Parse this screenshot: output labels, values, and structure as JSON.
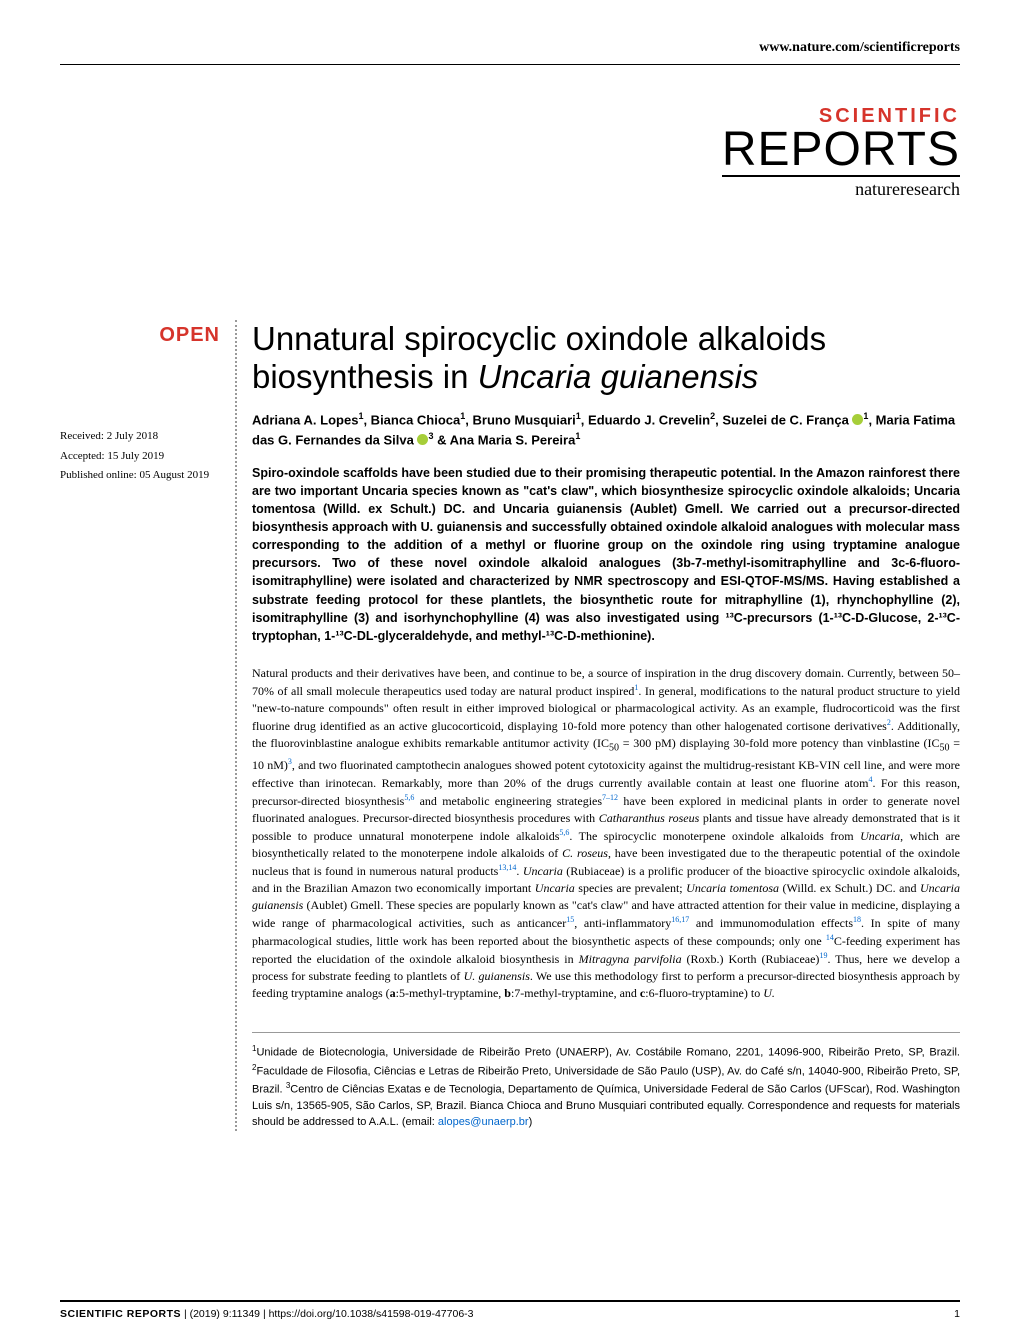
{
  "header": {
    "url": "www.nature.com/scientificreports"
  },
  "logo": {
    "line1": "SCIENTIFIC",
    "line2": "REPORTS",
    "line3": "natureresearch"
  },
  "badge": "OPEN",
  "meta": {
    "received": "Received: 2 July 2018",
    "accepted": "Accepted: 15 July 2019",
    "published": "Published online: 05 August 2019"
  },
  "title": {
    "part1": "Unnatural spirocyclic oxindole alkaloids biosynthesis in ",
    "italic": "Uncaria guianensis"
  },
  "authors_html": "Adriana A. Lopes<sup>1</sup>, Bianca Chioca<sup>1</sup>, Bruno Musquiari<sup>1</sup>, Eduardo J. Crevelin<sup>2</sup>, Suzelei de C. França <span class='orcid'></span><sup>1</sup>, Maria Fatima das G. Fernandes da Silva <span class='orcid'></span><sup>3</sup> & Ana Maria S. Pereira<sup>1</sup>",
  "abstract": "Spiro-oxindole scaffolds have been studied due to their promising therapeutic potential. In the Amazon rainforest there are two important Uncaria species known as \"cat's claw\", which biosynthesize spirocyclic oxindole alkaloids; Uncaria tomentosa (Willd. ex Schult.) DC. and Uncaria guianensis (Aublet) Gmell. We carried out a precursor-directed biosynthesis approach with U. guianensis and successfully obtained oxindole alkaloid analogues with molecular mass corresponding to the addition of a methyl or fluorine group on the oxindole ring using tryptamine analogue precursors. Two of these novel oxindole alkaloid analogues (3b-7-methyl-isomitraphylline and 3c-6-fluoro-isomitraphylline) were isolated and characterized by NMR spectroscopy and ESI-QTOF-MS/MS. Having established a substrate feeding protocol for these plantlets, the biosynthetic route for mitraphylline (1), rhynchophylline (2), isomitraphylline (3) and isorhynchophylline (4) was also investigated using ¹³C-precursors (1-¹³C-D-Glucose, 2-¹³C-tryptophan, 1-¹³C-DL-glyceraldehyde, and methyl-¹³C-D-methionine).",
  "body_html": "Natural products and their derivatives have been, and continue to be, a source of inspiration in the drug discovery domain. Currently, between 50–70% of all small molecule therapeutics used today are natural product inspired<sup>1</sup>. In general, modifications to the natural product structure to yield \"new-to-nature compounds\" often result in either improved biological or pharmacological activity. As an example, fludrocorticoid was the first fluorine drug identified as an active glucocorticoid, displaying 10-fold more potency than other halogenated cortisone derivatives<sup>2</sup>. Additionally, the fluorovinblastine analogue exhibits remarkable antitumor activity (IC<sub>50</sub> = 300 pM) displaying 30-fold more potency than vinblastine (IC<sub>50</sub> = 10 nM)<sup>3</sup>, and two fluorinated camptothecin analogues showed potent cytotoxicity against the multidrug-resistant KB-VIN cell line, and were more effective than irinotecan. Remarkably, more than 20% of the drugs currently available contain at least one fluorine atom<sup>4</sup>. For this reason, precursor-directed biosynthesis<sup>5,6</sup> and metabolic engineering strategies<sup>7–12</sup> have been explored in medicinal plants in order to generate novel fluorinated analogues. Precursor-directed biosynthesis procedures with <span class='it'>Catharanthus roseus</span> plants and tissue have already demonstrated that is it possible to produce unnatural monoterpene indole alkaloids<sup>5,6</sup>. The spirocyclic monoterpene oxindole alkaloids from <span class='it'>Uncaria</span>, which are biosynthetically related to the monoterpene indole alkaloids of <span class='it'>C. roseus</span>, have been investigated due to the therapeutic potential of the oxindole nucleus that is found in numerous natural products<sup>13,14</sup>. <span class='it'>Uncaria</span> (Rubiaceae) is a prolific producer of the bioactive spirocyclic oxindole alkaloids, and in the Brazilian Amazon two economically important <span class='it'>Uncaria</span> species are prevalent; <span class='it'>Uncaria tomentosa</span> (Willd. ex Schult.) DC. and <span class='it'>Uncaria guianensis</span> (Aublet) Gmell. These species are popularly known as \"cat's claw\" and have attracted attention for their value in medicine, displaying a wide range of pharmacological activities, such as anticancer<sup>15</sup>, anti-inflammatory<sup>16,17</sup> and immunomodulation effects<sup>18</sup>. In spite of many pharmacological studies, little work has been reported about the biosynthetic aspects of these compounds; only one <sup>14</sup>C-feeding experiment has reported the elucidation of the oxindole alkaloid biosynthesis in <span class='it'>Mitragyna parvifolia</span> (Roxb.) Korth (Rubiaceae)<sup>19</sup>. Thus, here we develop a process for substrate feeding to plantlets of <span class='it'>U. guianensis</span>. We use this methodology first to perform a precursor-directed biosynthesis approach by feeding tryptamine analogs (<b>a</b>:5-methyl-tryptamine, <b>b</b>:7-methyl-tryptamine, and <b>c</b>:6-fluoro-tryptamine) to <span class='it'>U.</span>",
  "affiliations_html": "<sup>1</sup>Unidade de Biotecnologia, Universidade de Ribeirão Preto (UNAERP), Av. Costábile Romano, 2201, 14096-900, Ribeirão Preto, SP, Brazil. <sup>2</sup>Faculdade de Filosofia, Ciências e Letras de Ribeirão Preto, Universidade de São Paulo (USP), Av. do Café s/n, 14040-900, Ribeirão Preto, SP, Brazil. <sup>3</sup>Centro de Ciências Exatas e de Tecnologia, Departamento de Química, Universidade Federal de São Carlos (UFScar), Rod. Washington Luis s/n, 13565-905, São Carlos, SP, Brazil. Bianca Chioca and Bruno Musquiari contributed equally. Correspondence and requests for materials should be addressed to A.A.L. (email: <a href='#'>alopes@unaerp.br</a>)",
  "footer": {
    "journal": "SCIENTIFIC REPORTS",
    "citation": "|         (2019) 9:11349  | https://doi.org/10.1038/s41598-019-47706-3",
    "page": "1"
  },
  "colors": {
    "accent": "#d6342b",
    "link": "#0066cc",
    "orcid": "#a6ce39",
    "text": "#000000",
    "background": "#ffffff",
    "divider": "#999999"
  },
  "typography": {
    "title_fontsize": 33,
    "authors_fontsize": 13,
    "abstract_fontsize": 12.5,
    "body_fontsize": 12,
    "meta_fontsize": 11,
    "affil_fontsize": 11
  }
}
